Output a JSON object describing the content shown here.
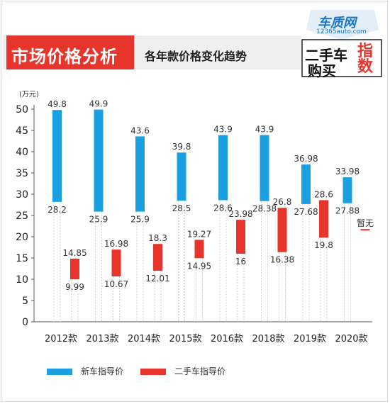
{
  "header": {
    "title": "市场价格分析",
    "subtitle": "各年款价格变化趋势"
  },
  "logo": {
    "brand": "车质网",
    "url": "12365auto.com",
    "line1": "二手车",
    "line2": "购买",
    "line3": "指数"
  },
  "colors": {
    "new_car": "#1aa0e0",
    "used_car": "#e8352b"
  },
  "chart_data": {
    "type": "bar",
    "subtype": "floating-range",
    "ylabel": "(万元)",
    "ylim": [
      0,
      50
    ],
    "yticks": [
      0,
      5,
      10,
      15,
      20,
      25,
      30,
      35,
      40,
      45,
      50
    ],
    "grid": false,
    "legend_position": "bottom",
    "categories": [
      "2012款",
      "2013款",
      "2014款",
      "2015款",
      "2016款",
      "2018款",
      "2019款",
      "2020款"
    ],
    "series": [
      {
        "name": "新车指导价",
        "color": "#1aa0e0",
        "high": [
          49.8,
          49.9,
          43.6,
          39.8,
          43.9,
          43.9,
          36.98,
          33.98
        ],
        "low": [
          28.2,
          25.9,
          25.9,
          28.5,
          28.6,
          28.38,
          27.68,
          27.88
        ],
        "high_labels": [
          "49.8",
          "49.9",
          "43.6",
          "39.8",
          "43.9",
          "43.9",
          "36.98",
          "33.98"
        ],
        "low_labels": [
          "28.2",
          "25.9",
          "25.9",
          "28.5",
          "28.6",
          "28.38",
          "27.68",
          "27.88"
        ]
      },
      {
        "name": "二手车指导价",
        "color": "#e8352b",
        "high": [
          14.85,
          16.98,
          18.3,
          19.27,
          23.98,
          26.8,
          28.6,
          21.8
        ],
        "low": [
          9.99,
          10.67,
          12.01,
          14.95,
          16,
          16.38,
          19.8,
          21.6
        ],
        "high_labels": [
          "14.85",
          "16.98",
          "18.3",
          "19.27",
          "23.98",
          "26.8",
          "28.6",
          "暂无"
        ],
        "low_labels": [
          "9.99",
          "10.67",
          "12.01",
          "14.95",
          "16",
          "16.38",
          "19.8",
          ""
        ]
      }
    ]
  }
}
